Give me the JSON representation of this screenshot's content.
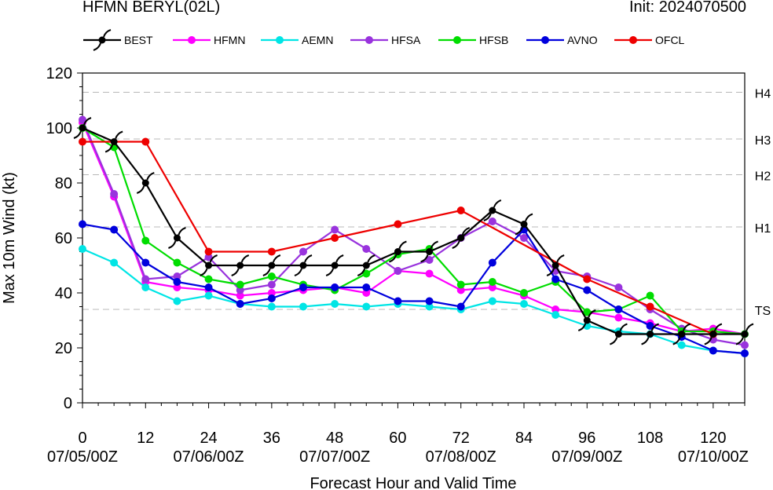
{
  "header": {
    "title_left": "HFMN BERYL(02L)",
    "title_right": "Init: 2024070500"
  },
  "chart_data": {
    "type": "line",
    "title": "HFMN BERYL(02L)",
    "xlabel": "Forecast Hour and Valid Time",
    "ylabel": "Max 10m Wind (kt)",
    "xlim": [
      0,
      126
    ],
    "ylim": [
      0,
      120
    ],
    "x_ticks": [
      0,
      12,
      24,
      36,
      48,
      60,
      72,
      84,
      96,
      108,
      120
    ],
    "y_ticks": [
      0,
      20,
      40,
      60,
      80,
      100,
      120
    ],
    "date_labels": [
      {
        "hour": 0,
        "label": "07/05/00Z"
      },
      {
        "hour": 24,
        "label": "07/06/00Z"
      },
      {
        "hour": 48,
        "label": "07/07/00Z"
      },
      {
        "hour": 72,
        "label": "07/08/00Z"
      },
      {
        "hour": 96,
        "label": "07/09/00Z"
      },
      {
        "hour": 120,
        "label": "07/10/00Z"
      }
    ],
    "thresholds": [
      {
        "label": "TS",
        "value": 34
      },
      {
        "label": "H1",
        "value": 64
      },
      {
        "label": "H2",
        "value": 83
      },
      {
        "label": "H3",
        "value": 96
      },
      {
        "label": "H4",
        "value": 113
      }
    ],
    "legend_position": "top",
    "series": [
      {
        "name": "BEST",
        "color": "#000000",
        "marker": "hurricane-symbol",
        "x": [
          0,
          6,
          12,
          18,
          24,
          30,
          36,
          42,
          48,
          54,
          60,
          66,
          72,
          78,
          84,
          90,
          96,
          102,
          108,
          114,
          120,
          126
        ],
        "values": [
          100,
          95,
          80,
          60,
          50,
          50,
          50,
          50,
          50,
          50,
          55,
          55,
          60,
          70,
          65,
          50,
          30,
          25,
          25,
          25,
          25,
          25
        ]
      },
      {
        "name": "HFMN",
        "color": "#ff00ff",
        "marker": "circle",
        "x": [
          0,
          6,
          12,
          18,
          24,
          30,
          36,
          42,
          48,
          54,
          60,
          66,
          72,
          78,
          84,
          90,
          96,
          102,
          108,
          114,
          120,
          126
        ],
        "values": [
          102,
          75,
          44,
          42,
          41,
          39,
          40,
          41,
          42,
          40,
          48,
          47,
          41,
          42,
          39,
          34,
          33,
          31,
          29,
          26,
          27,
          25
        ]
      },
      {
        "name": "AEMN",
        "color": "#00e5e5",
        "marker": "circle",
        "x": [
          0,
          6,
          12,
          18,
          24,
          30,
          36,
          42,
          48,
          54,
          60,
          66,
          72,
          78,
          84,
          90,
          96,
          102,
          108,
          114,
          120,
          126
        ],
        "values": [
          56,
          51,
          42,
          37,
          39,
          36,
          35,
          35,
          36,
          35,
          36,
          35,
          34,
          37,
          36,
          32,
          28,
          26,
          25,
          21,
          19,
          18
        ]
      },
      {
        "name": "HFSA",
        "color": "#9933dd",
        "marker": "circle",
        "x": [
          0,
          6,
          12,
          18,
          24,
          30,
          36,
          42,
          48,
          54,
          60,
          66,
          72,
          78,
          84,
          90,
          96,
          102,
          108,
          114,
          120,
          126
        ],
        "values": [
          103,
          76,
          45,
          46,
          53,
          41,
          43,
          55,
          63,
          56,
          48,
          52,
          60,
          66,
          60,
          48,
          46,
          42,
          34,
          27,
          23,
          21
        ]
      },
      {
        "name": "HFSB",
        "color": "#00dd00",
        "marker": "circle",
        "x": [
          0,
          6,
          12,
          18,
          24,
          30,
          36,
          42,
          48,
          54,
          60,
          66,
          72,
          78,
          84,
          90,
          96,
          102,
          108,
          114,
          120,
          126
        ],
        "values": [
          100,
          93,
          59,
          51,
          45,
          43,
          46,
          43,
          41,
          47,
          54,
          56,
          43,
          44,
          40,
          44,
          33,
          34,
          39,
          26,
          26,
          25
        ]
      },
      {
        "name": "AVNO",
        "color": "#0000dd",
        "marker": "circle",
        "x": [
          0,
          6,
          12,
          18,
          24,
          30,
          36,
          42,
          48,
          54,
          60,
          66,
          72,
          78,
          84,
          90,
          96,
          102,
          108,
          114,
          120,
          126
        ],
        "values": [
          65,
          63,
          51,
          44,
          42,
          36,
          38,
          42,
          42,
          42,
          37,
          37,
          35,
          51,
          63,
          45,
          41,
          34,
          28,
          24,
          19,
          18
        ]
      },
      {
        "name": "OFCL",
        "color": "#ee0000",
        "marker": "circle",
        "x": [
          0,
          12,
          24,
          36,
          48,
          60,
          72,
          96,
          108,
          120
        ],
        "values": [
          95,
          95,
          55,
          55,
          60,
          65,
          70,
          45,
          35,
          25
        ]
      }
    ]
  }
}
